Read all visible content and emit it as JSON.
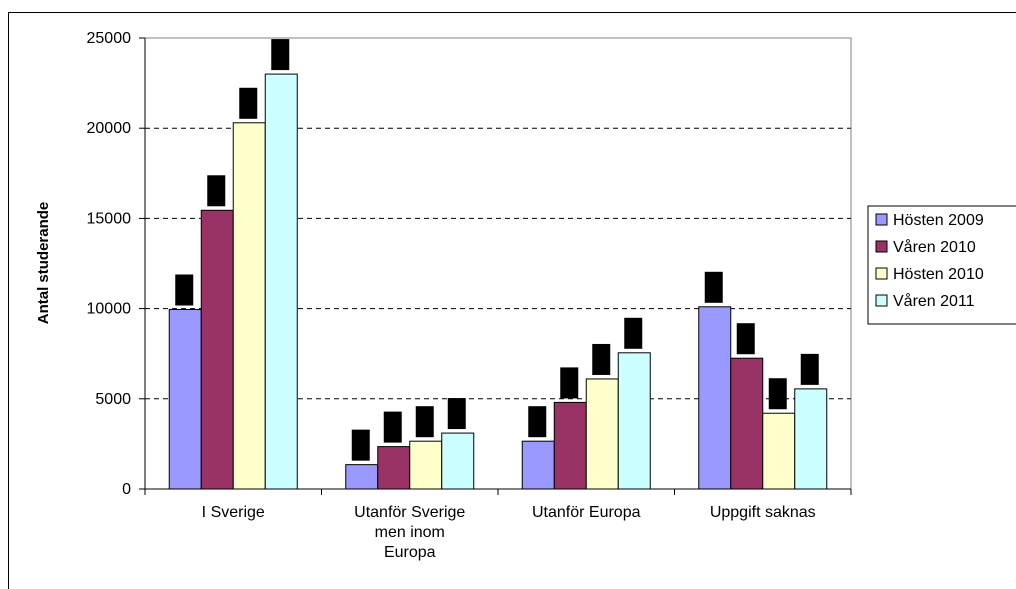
{
  "chart_data": {
    "type": "bar",
    "title": "",
    "xlabel": "",
    "ylabel": "Antal studerande",
    "ylim": [
      0,
      25000
    ],
    "yticks": [
      0,
      5000,
      10000,
      15000,
      20000,
      25000
    ],
    "grid": "horizontal-dashed",
    "legend_position": "right",
    "categories": [
      "I Sverige",
      "Utanför Sverige men inom Europa",
      "Utanför Europa",
      "Uppgift saknas"
    ],
    "category_lines": [
      [
        "I Sverige"
      ],
      [
        "Utanför Sverige",
        "men inom",
        "Europa"
      ],
      [
        "Utanför Europa"
      ],
      [
        "Uppgift saknas"
      ]
    ],
    "series": [
      {
        "name": "Hösten 2009",
        "color": "#9999ff",
        "values": [
          9950,
          1350,
          2650,
          10100
        ]
      },
      {
        "name": "Våren 2010",
        "color": "#993366",
        "values": [
          15450,
          2350,
          4800,
          7250
        ]
      },
      {
        "name": "Hösten 2010",
        "color": "#ffffcc",
        "values": [
          20300,
          2650,
          6100,
          4200
        ]
      },
      {
        "name": "Våren 2011",
        "color": "#ccffff",
        "values": [
          23000,
          3100,
          7550,
          5550
        ]
      }
    ]
  }
}
